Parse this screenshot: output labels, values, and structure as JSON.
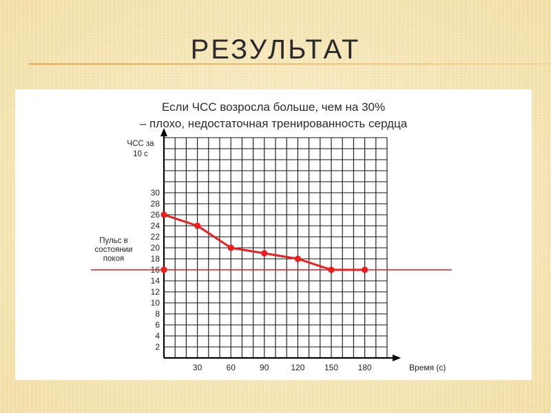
{
  "slide": {
    "title": "РЕЗУЛЬТАТ"
  },
  "chart_data": {
    "type": "line",
    "title": "Если ЧСС возросла больше, чем на 30%",
    "subtitle": "– плохо, недостаточная тренированность сердца",
    "ylabel_line1": "ЧСС за",
    "ylabel_line2": "10 с",
    "xlabel": "Время (с)",
    "x": [
      0,
      30,
      60,
      90,
      120,
      150,
      180
    ],
    "x_ticks": [
      "30",
      "60",
      "90",
      "120",
      "150",
      "180"
    ],
    "y_ticks": [
      "2",
      "4",
      "6",
      "8",
      "10",
      "12",
      "14",
      "16",
      "18",
      "20",
      "22",
      "24",
      "26",
      "28",
      "30"
    ],
    "series": [
      {
        "values": [
          26,
          24,
          20,
          19,
          18,
          16,
          16
        ]
      }
    ],
    "reference_line": {
      "value": 16,
      "label_lines": [
        "Пульс в",
        "состоянии",
        "покоя"
      ]
    },
    "ylim": [
      0,
      40
    ],
    "xlim": [
      0,
      200
    ],
    "grid": true,
    "colors": {
      "series": "#ee1c1c",
      "grid": "#111111",
      "axis": "#000000"
    }
  }
}
